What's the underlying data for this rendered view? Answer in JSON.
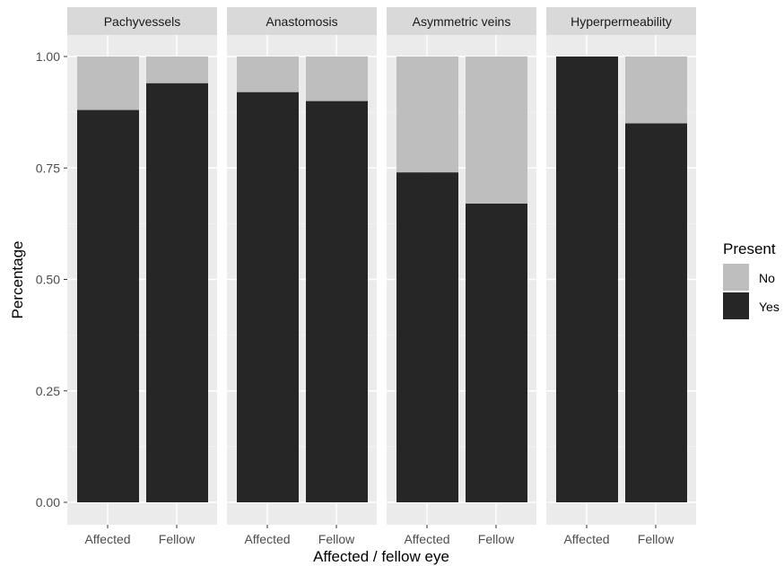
{
  "chart_data": {
    "type": "bar",
    "stacked": true,
    "facets": [
      "Pachyvessels",
      "Anastomosis",
      "Asymmetric veins",
      "Hyperpermeability"
    ],
    "categories": [
      "Affected",
      "Fellow"
    ],
    "series": [
      {
        "name": "No",
        "color": "#bebebe",
        "values": [
          [
            0.12,
            0.06
          ],
          [
            0.08,
            0.1
          ],
          [
            0.26,
            0.33
          ],
          [
            0.0,
            0.15
          ]
        ]
      },
      {
        "name": "Yes",
        "color": "#262626",
        "values": [
          [
            0.88,
            0.94
          ],
          [
            0.92,
            0.9
          ],
          [
            0.74,
            0.67
          ],
          [
            1.0,
            0.85
          ]
        ]
      }
    ],
    "xlabel": "Affected / fellow eye",
    "ylabel": "Percentage",
    "ylim": [
      0,
      1
    ],
    "yticks": [
      "0.00",
      "0.25",
      "0.50",
      "0.75",
      "1.00"
    ],
    "legend": {
      "title": "Present",
      "entries": [
        "No",
        "Yes"
      ],
      "placement": "right"
    },
    "grid": true
  }
}
